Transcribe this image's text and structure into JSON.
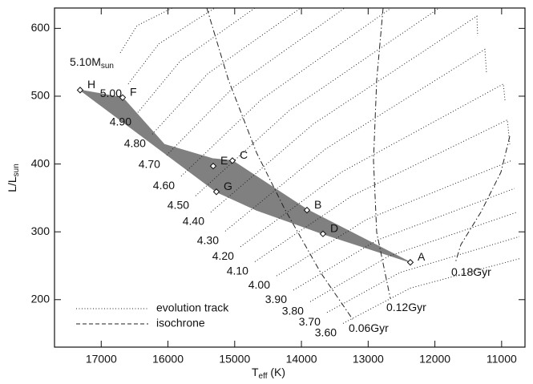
{
  "chart_data": {
    "type": "line",
    "xlabel": {
      "main": "T",
      "sub": "eff",
      "rest": " (K)"
    },
    "ylabel": {
      "main": "L/L",
      "sub": "sun"
    },
    "xlim": [
      17700,
      10650
    ],
    "ylim": [
      130,
      630
    ],
    "xticks": [
      17000,
      16000,
      15000,
      14000,
      13000,
      12000,
      11000
    ],
    "yticks": [
      200,
      300,
      400,
      500,
      600
    ],
    "tracks": {
      "name": "evolution track",
      "color": "#222222",
      "mass_unit": {
        "main": "M",
        "sub": "sun"
      },
      "lines": [
        {
          "label": "5.10",
          "x": [
            16715,
            16463,
            15935
          ],
          "y": [
            564,
            604,
            630
          ]
        },
        {
          "label": "5.00",
          "x": [
            16595,
            16139,
            15298
          ],
          "y": [
            518,
            577,
            630
          ]
        },
        {
          "label": "4.90",
          "x": [
            16451,
            15814,
            14698
          ],
          "y": [
            476,
            552,
            630
          ]
        },
        {
          "label": "4.80",
          "x": [
            16235,
            15406,
            14013
          ],
          "y": [
            444,
            533,
            630
          ]
        },
        {
          "label": "4.70",
          "x": [
            16019,
            15010,
            13352
          ],
          "y": [
            413,
            514,
            630
          ]
        },
        {
          "label": "4.60",
          "x": [
            15802,
            14601,
            12656
          ],
          "y": [
            382,
            495,
            630
          ]
        },
        {
          "label": "4.50",
          "x": [
            15586,
            14181,
            11935
          ],
          "y": [
            353,
            479,
            630
          ]
        },
        {
          "label": "4.40",
          "x": [
            15358,
            13821,
            11371,
            11359
          ],
          "y": [
            329,
            459,
            618,
            589
          ]
        },
        {
          "label": "4.30",
          "x": [
            15142,
            13641,
            11251,
            11227
          ],
          "y": [
            301,
            422,
            569,
            535
          ]
        },
        {
          "label": "4.20",
          "x": [
            14914,
            13400,
            10974,
            10950
          ],
          "y": [
            278,
            388,
            518,
            494
          ]
        },
        {
          "label": "4.10",
          "x": [
            14698,
            13244,
            10914,
            10878
          ],
          "y": [
            256,
            353,
            465,
            429
          ]
        },
        {
          "label": "4.00",
          "x": [
            14373,
            13028,
            10854
          ],
          "y": [
            235,
            318,
            405
          ]
        },
        {
          "label": "3.90",
          "x": [
            14121,
            12860,
            10806
          ],
          "y": [
            214,
            288,
            364
          ]
        },
        {
          "label": "3.80",
          "x": [
            13869,
            12692,
            10770
          ],
          "y": [
            197,
            264,
            329
          ]
        },
        {
          "label": "3.70",
          "x": [
            13617,
            12524,
            10734
          ],
          "y": [
            181,
            240,
            293
          ]
        },
        {
          "label": "3.60",
          "x": [
            13376,
            12368,
            10710
          ],
          "y": [
            165,
            217,
            261
          ]
        }
      ]
    },
    "isochrones": {
      "name": "isochrone",
      "color": "#222222",
      "lines": [
        {
          "label": "0.06Gyr",
          "x": [
            15418,
            15094,
            14674,
            14253,
            13713,
            13232
          ],
          "y": [
            630,
            524,
            417,
            334,
            240,
            171
          ]
        },
        {
          "label": "0.12Gyr",
          "x": [
            12776,
            12872,
            12920,
            12872,
            12668
          ],
          "y": [
            630,
            524,
            405,
            299,
            202
          ]
        },
        {
          "label": "0.18Gyr",
          "x": [
            10878,
            11010,
            11311,
            11611,
            11695
          ],
          "y": [
            441,
            388,
            329,
            281,
            254
          ]
        }
      ]
    },
    "region": {
      "color": "#808080",
      "x": [
        17316,
        16679,
        16055,
        15334,
        15034,
        13917,
        12368,
        13677,
        14674,
        15274
      ],
      "y": [
        509,
        498,
        429,
        408,
        405,
        333,
        255,
        297,
        332,
        359
      ]
    },
    "points": {
      "labels": [
        "A",
        "B",
        "C",
        "D",
        "E",
        "F",
        "G",
        "H"
      ],
      "x": [
        12368,
        13917,
        15034,
        13677,
        15322,
        16679,
        15274,
        17316
      ],
      "y": [
        255,
        332,
        405,
        297,
        397,
        498,
        359,
        509
      ]
    }
  }
}
